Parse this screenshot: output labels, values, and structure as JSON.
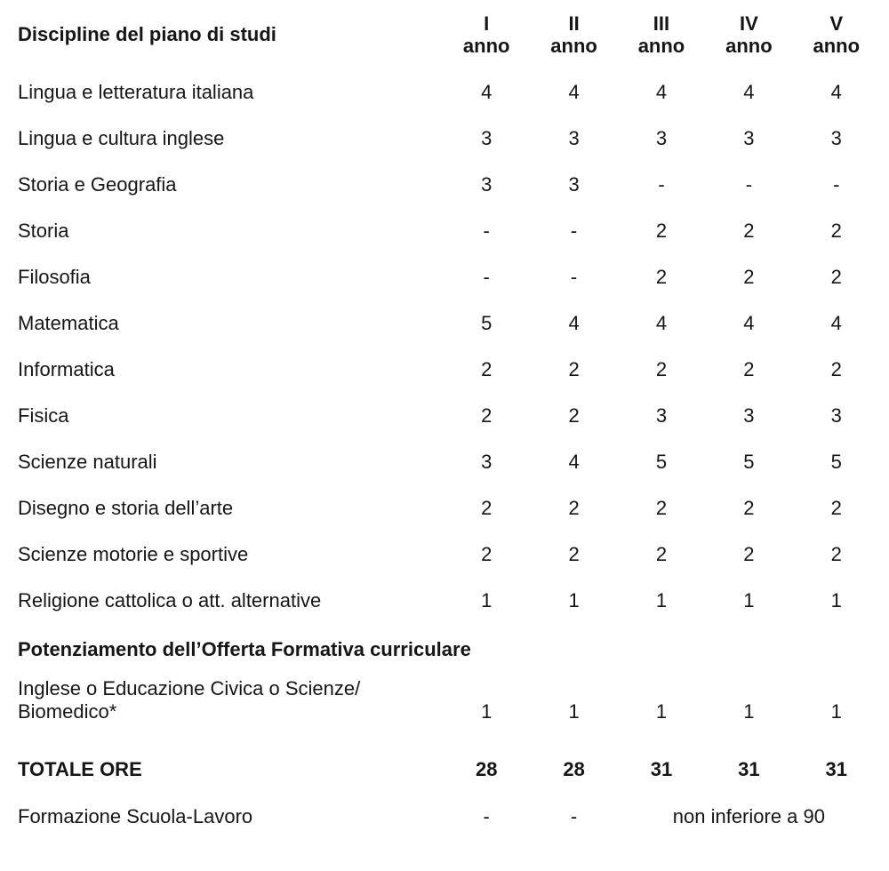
{
  "table": {
    "header": {
      "label": "Discipline del piano di studi",
      "columns": [
        {
          "numeral": "I",
          "unit": "anno"
        },
        {
          "numeral": "II",
          "unit": "anno"
        },
        {
          "numeral": "III",
          "unit": "anno"
        },
        {
          "numeral": "IV",
          "unit": "anno"
        },
        {
          "numeral": "V",
          "unit": "anno"
        }
      ]
    },
    "rows": [
      {
        "type": "normal",
        "label": "Lingua e letteratura italiana",
        "values": [
          "4",
          "4",
          "4",
          "4",
          "4"
        ]
      },
      {
        "type": "normal",
        "label": "Lingua e cultura inglese",
        "values": [
          "3",
          "3",
          "3",
          "3",
          "3"
        ]
      },
      {
        "type": "normal",
        "label": "Storia e Geografia",
        "values": [
          "3",
          "3",
          "-",
          "-",
          "-"
        ]
      },
      {
        "type": "normal",
        "label": "Storia",
        "values": [
          "-",
          "-",
          "2",
          "2",
          "2"
        ]
      },
      {
        "type": "normal",
        "label": "Filosofia",
        "values": [
          "-",
          "-",
          "2",
          "2",
          "2"
        ]
      },
      {
        "type": "normal",
        "label": "Matematica",
        "values": [
          "5",
          "4",
          "4",
          "4",
          "4"
        ]
      },
      {
        "type": "normal",
        "label": "Informatica",
        "values": [
          "2",
          "2",
          "2",
          "2",
          "2"
        ]
      },
      {
        "type": "normal",
        "label": "Fisica",
        "values": [
          "2",
          "2",
          "3",
          "3",
          "3"
        ]
      },
      {
        "type": "normal",
        "label": "Scienze naturali",
        "values": [
          "3",
          "4",
          "5",
          "5",
          "5"
        ]
      },
      {
        "type": "normal",
        "label": "Disegno e storia dell’arte",
        "values": [
          "2",
          "2",
          "2",
          "2",
          "2"
        ]
      },
      {
        "type": "normal",
        "label": "Scienze motorie e sportive",
        "values": [
          "2",
          "2",
          "2",
          "2",
          "2"
        ]
      },
      {
        "type": "normal",
        "label": "Religione cattolica o att. alternative",
        "values": [
          "1",
          "1",
          "1",
          "1",
          "1"
        ]
      },
      {
        "type": "section",
        "label": "Potenziamento dell’Offerta Formativa curriculare"
      },
      {
        "type": "normal",
        "wrap": true,
        "label": "Inglese o Educazione Civica o Scienze/\nBiomedico*",
        "values": [
          "1",
          "1",
          "1",
          "1",
          "1"
        ]
      },
      {
        "type": "total",
        "label": "TOTALE ORE",
        "values": [
          "28",
          "28",
          "31",
          "31",
          "31"
        ]
      },
      {
        "type": "footer",
        "label": "Formazione Scuola-Lavoro",
        "values": [
          "-",
          "-"
        ],
        "span_text": "non inferiore a 90"
      }
    ]
  },
  "colors": {
    "text": "#161616",
    "background": "#ffffff"
  }
}
